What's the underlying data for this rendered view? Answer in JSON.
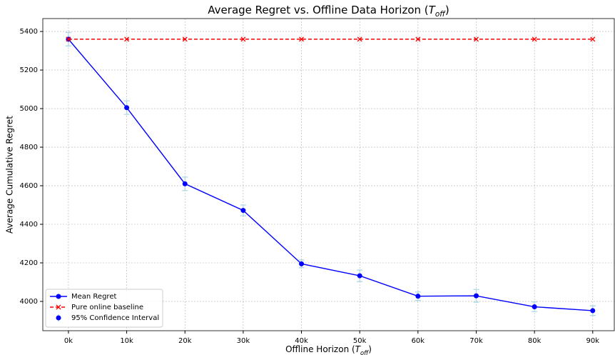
{
  "chart_data": {
    "type": "line",
    "title_parts": [
      "Average Regret vs. Offline Data Horizon (",
      "T",
      "off",
      ")"
    ],
    "xlabel_parts": [
      "Offline Horizon (",
      "T",
      "off",
      ")"
    ],
    "ylabel": "Average Cumulative Regret",
    "x": [
      0,
      10000,
      20000,
      30000,
      40000,
      50000,
      60000,
      70000,
      80000,
      90000
    ],
    "series": [
      {
        "name": "Mean Regret",
        "color": "#0000ff",
        "marker": "o",
        "linestyle": "solid",
        "values": [
          5360,
          5005,
          4610,
          4472,
          4195,
          4133,
          4027,
          4029,
          3972,
          3952
        ],
        "errors": [
          35,
          35,
          35,
          28,
          20,
          30,
          22,
          33,
          25,
          25
        ],
        "error_name": "95% Confidence Interval",
        "error_color": "#add8e6"
      },
      {
        "name": "Pure online baseline",
        "color": "#ff0000",
        "marker": "x",
        "linestyle": "dashed",
        "values": [
          5360,
          5360,
          5360,
          5360,
          5360,
          5360,
          5360,
          5360,
          5360,
          5360
        ]
      }
    ],
    "xlim": [
      -4400,
      93700
    ],
    "ylim": [
      3848,
      5467
    ],
    "xticks": [
      {
        "value": 0,
        "label": "0k"
      },
      {
        "value": 10000,
        "label": "10k"
      },
      {
        "value": 20000,
        "label": "20k"
      },
      {
        "value": 30000,
        "label": "30k"
      },
      {
        "value": 40000,
        "label": "40k"
      },
      {
        "value": 50000,
        "label": "50k"
      },
      {
        "value": 60000,
        "label": "60k"
      },
      {
        "value": 70000,
        "label": "70k"
      },
      {
        "value": 80000,
        "label": "80k"
      },
      {
        "value": 90000,
        "label": "90k"
      }
    ],
    "yticks": [
      4000,
      4200,
      4400,
      4600,
      4800,
      5000,
      5200,
      5400
    ],
    "grid": true,
    "legend": "lower left"
  }
}
